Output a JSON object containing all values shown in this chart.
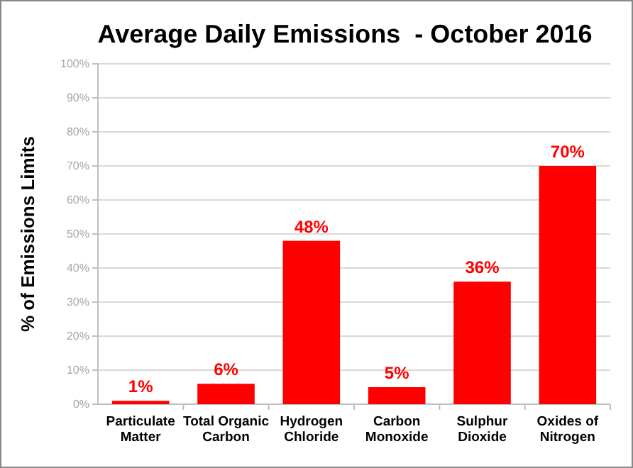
{
  "chart_data": {
    "type": "bar",
    "title": "Average Daily Emissions  - October 2016",
    "ylabel": "% of Emissions Limits",
    "categories": [
      "Particulate Matter",
      "Total Organic Carbon",
      "Hydrogen Chloride",
      "Carbon Monoxide",
      "Sulphur Dioxide",
      "Oxides of Nitrogen"
    ],
    "values": [
      1,
      6,
      48,
      5,
      36,
      70
    ],
    "color": "#ff0000",
    "value_labels": [
      "1%",
      "6%",
      "48%",
      "5%",
      "36%",
      "70%"
    ],
    "ylim": [
      0,
      100
    ],
    "yticks": [
      {
        "value": 0,
        "label": "0%"
      },
      {
        "value": 10,
        "label": "10%"
      },
      {
        "value": 20,
        "label": "20%"
      },
      {
        "value": 30,
        "label": "30%"
      },
      {
        "value": 40,
        "label": "40%"
      },
      {
        "value": 50,
        "label": "50%"
      },
      {
        "value": 60,
        "label": "60%"
      },
      {
        "value": 70,
        "label": "70%"
      },
      {
        "value": 80,
        "label": "80%"
      },
      {
        "value": 90,
        "label": "90%"
      },
      {
        "value": 100,
        "label": "100%"
      }
    ],
    "grid": "y"
  }
}
